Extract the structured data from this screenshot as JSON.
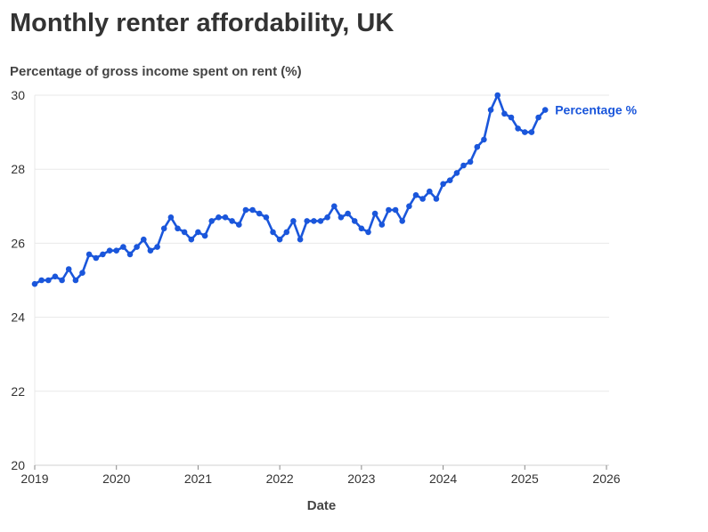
{
  "chart_data": {
    "type": "line",
    "title": "Monthly renter affordability, UK",
    "ylabel": "Percentage of gross income spent on rent (%)",
    "xlabel": "Date",
    "xlim": [
      2019,
      2026
    ],
    "ylim": [
      20,
      30
    ],
    "x_ticks": [
      "2019",
      "2020",
      "2021",
      "2022",
      "2023",
      "2024",
      "2025",
      "2026"
    ],
    "y_ticks": [
      "20",
      "22",
      "24",
      "26",
      "28",
      "30"
    ],
    "grid": true,
    "color": "#1a56db",
    "series": [
      {
        "name": "Percentage %",
        "x": [
          "2019-01",
          "2019-02",
          "2019-03",
          "2019-04",
          "2019-05",
          "2019-06",
          "2019-07",
          "2019-08",
          "2019-09",
          "2019-10",
          "2019-11",
          "2019-12",
          "2020-01",
          "2020-02",
          "2020-03",
          "2020-04",
          "2020-05",
          "2020-06",
          "2020-07",
          "2020-08",
          "2020-09",
          "2020-10",
          "2020-11",
          "2020-12",
          "2021-01",
          "2021-02",
          "2021-03",
          "2021-04",
          "2021-05",
          "2021-06",
          "2021-07",
          "2021-08",
          "2021-09",
          "2021-10",
          "2021-11",
          "2021-12",
          "2022-01",
          "2022-02",
          "2022-03",
          "2022-04",
          "2022-05",
          "2022-06",
          "2022-07",
          "2022-08",
          "2022-09",
          "2022-10",
          "2022-11",
          "2022-12",
          "2023-01",
          "2023-02",
          "2023-03",
          "2023-04",
          "2023-05",
          "2023-06",
          "2023-07",
          "2023-08",
          "2023-09",
          "2023-10",
          "2023-11",
          "2023-12",
          "2024-01",
          "2024-02",
          "2024-03",
          "2024-04",
          "2024-05",
          "2024-06",
          "2024-07",
          "2024-08",
          "2024-09",
          "2024-10",
          "2024-11",
          "2024-12",
          "2025-01",
          "2025-02",
          "2025-03",
          "2025-04"
        ],
        "values": [
          24.9,
          25.0,
          25.0,
          25.1,
          25.0,
          25.3,
          25.0,
          25.2,
          25.7,
          25.6,
          25.7,
          25.8,
          25.8,
          25.9,
          25.7,
          25.9,
          26.1,
          25.8,
          25.9,
          26.4,
          26.7,
          26.4,
          26.3,
          26.1,
          26.3,
          26.2,
          26.6,
          26.7,
          26.7,
          26.6,
          26.5,
          26.9,
          26.9,
          26.8,
          26.7,
          26.3,
          26.1,
          26.3,
          26.6,
          26.1,
          26.6,
          26.6,
          26.6,
          26.7,
          27.0,
          26.7,
          26.8,
          26.6,
          26.4,
          26.3,
          26.8,
          26.5,
          26.9,
          26.9,
          26.6,
          27.0,
          27.3,
          27.2,
          27.4,
          27.2,
          27.6,
          27.7,
          27.9,
          28.1,
          28.2,
          28.6,
          28.8,
          29.6,
          30.0,
          29.5,
          29.4,
          29.1,
          29.0,
          29.0,
          29.4,
          29.6
        ]
      }
    ]
  }
}
